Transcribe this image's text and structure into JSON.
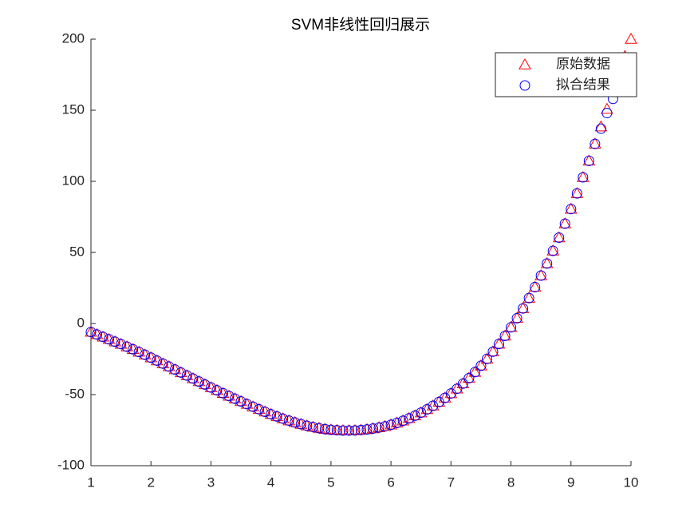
{
  "chart_data": {
    "type": "scatter",
    "title": "SVM非线性回归展示",
    "x": [
      1.0,
      1.1,
      1.2,
      1.3,
      1.4,
      1.5,
      1.6,
      1.7,
      1.8,
      1.9,
      2.0,
      2.1,
      2.2,
      2.3,
      2.4,
      2.5,
      2.6,
      2.7,
      2.8,
      2.9,
      3.0,
      3.1,
      3.2,
      3.3,
      3.4,
      3.5,
      3.6,
      3.7,
      3.8,
      3.9,
      4.0,
      4.1,
      4.2,
      4.3,
      4.4,
      4.5,
      4.6,
      4.7,
      4.8,
      4.9,
      5.0,
      5.1,
      5.2,
      5.3,
      5.4,
      5.5,
      5.6,
      5.7,
      5.8,
      5.9,
      6.0,
      6.1,
      6.2,
      6.3,
      6.4,
      6.5,
      6.6,
      6.7,
      6.8,
      6.9,
      7.0,
      7.1,
      7.2,
      7.3,
      7.4,
      7.5,
      7.6,
      7.7,
      7.8,
      7.9,
      8.0,
      8.1,
      8.2,
      8.3,
      8.4,
      8.5,
      8.6,
      8.7,
      8.8,
      8.9,
      9.0,
      9.1,
      9.2,
      9.3,
      9.4,
      9.5,
      9.6,
      9.7,
      9.8,
      9.9,
      10.0
    ],
    "series": [
      {
        "name": "原始数据",
        "color": "#ff0000",
        "marker": "triangle",
        "values": [
          -6,
          -7.7,
          -9.4,
          -11.1,
          -12.8,
          -14.5,
          -16.3,
          -18.1,
          -20.0,
          -22.0,
          -24.0,
          -26.1,
          -28.2,
          -30.3,
          -32.4,
          -34.5,
          -36.6,
          -38.7,
          -40.8,
          -42.9,
          -45.0,
          -47.0,
          -49.0,
          -51.0,
          -52.9,
          -54.8,
          -56.7,
          -58.5,
          -60.3,
          -62.1,
          -63.8,
          -65.4,
          -66.9,
          -68.3,
          -69.6,
          -70.8,
          -71.9,
          -72.8,
          -73.6,
          -74.3,
          -74.8,
          -75.1,
          -75.3,
          -75.3,
          -75.2,
          -74.9,
          -74.5,
          -73.9,
          -73.2,
          -72.3,
          -71.2,
          -69.9,
          -68.4,
          -66.7,
          -64.8,
          -62.7,
          -60.4,
          -57.9,
          -55.2,
          -52.3,
          -49.2,
          -45.9,
          -42.3,
          -38.4,
          -34.2,
          -29.7,
          -24.9,
          -19.8,
          -14.4,
          -8.7,
          -2.7,
          3.7,
          10.6,
          17.9,
          25.6,
          33.7,
          42.2,
          51.1,
          60.4,
          70.2,
          80.5,
          91.5,
          102.8,
          114.4,
          126.3,
          138.4,
          150.8,
          163.4,
          176.2,
          188,
          200
        ]
      },
      {
        "name": "拟合结果",
        "color": "#0000ff",
        "marker": "circle",
        "values": [
          -6,
          -7.7,
          -9.4,
          -11.1,
          -12.8,
          -14.5,
          -16.3,
          -18.1,
          -20.0,
          -22.0,
          -24.0,
          -26.1,
          -28.2,
          -30.3,
          -32.4,
          -34.5,
          -36.6,
          -38.7,
          -40.8,
          -42.9,
          -45.0,
          -47.0,
          -49.0,
          -51.0,
          -52.9,
          -54.8,
          -56.7,
          -58.5,
          -60.3,
          -62.1,
          -63.8,
          -65.4,
          -66.9,
          -68.3,
          -69.6,
          -70.8,
          -71.9,
          -72.8,
          -73.6,
          -74.3,
          -74.8,
          -75.1,
          -75.3,
          -75.3,
          -75.2,
          -74.9,
          -74.5,
          -73.9,
          -73.2,
          -72.3,
          -71.2,
          -69.9,
          -68.4,
          -66.7,
          -64.8,
          -62.7,
          -60.4,
          -57.9,
          -55.2,
          -52.3,
          -49.2,
          -45.9,
          -42.3,
          -38.4,
          -34.2,
          -29.7,
          -24.9,
          -19.8,
          -14.4,
          -8.7,
          -2.7,
          3.7,
          10.6,
          17.9,
          25.6,
          33.7,
          42.2,
          51.1,
          60.4,
          70.2,
          80.5,
          91.5,
          102.8,
          114.4,
          126.3,
          137,
          148,
          158,
          166,
          174,
          180
        ]
      }
    ],
    "xlim": [
      1,
      10
    ],
    "xticks": [
      1,
      2,
      3,
      4,
      5,
      6,
      7,
      8,
      9,
      10
    ],
    "ylim": [
      -100,
      200
    ],
    "yticks": [
      -100,
      -50,
      0,
      50,
      100,
      150,
      200
    ],
    "grid": false,
    "legend": "northeast"
  }
}
